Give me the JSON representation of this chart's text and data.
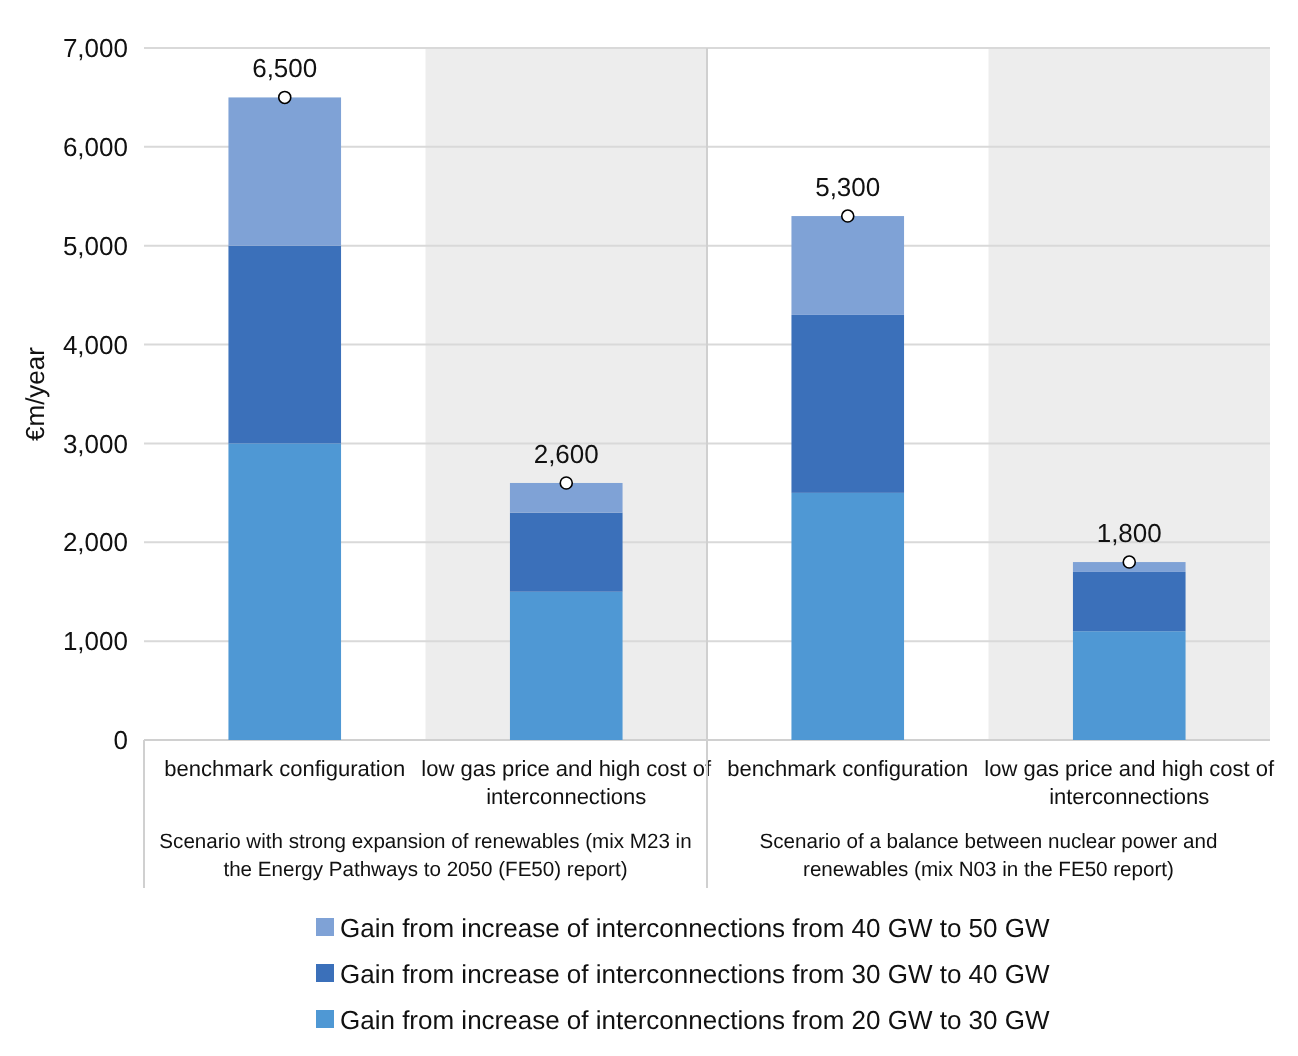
{
  "chart_data": [
    {
      "type": "bar",
      "stacked": true,
      "ylabel": "€m/year",
      "categories": [
        "benchmark configuration",
        "low gas price and high cost of interconnections"
      ],
      "series": [
        {
          "name": "Gain from increase of interconnections from 20 GW to 30 GW",
          "color": "#4f98d4",
          "values": [
            3000,
            1500
          ]
        },
        {
          "name": "Gain from increase of interconnections from 30 GW to 40 GW",
          "color": "#3b70ba",
          "values": [
            2000,
            800
          ]
        },
        {
          "name": "Gain from increase of interconnections from 40 GW to 50 GW",
          "color": "#7fa2d6",
          "values": [
            1500,
            300
          ]
        },
        {
          "type": "scatter",
          "color": "#ffffff",
          "marker": "circle",
          "values": [
            6500,
            2600
          ]
        }
      ],
      "totals": [
        "6,500",
        "2,600"
      ],
      "annotations": [
        "Scenario with strong expansion of renewables (mix M23 in the Energy Pathways to 2050 (FE50) report)"
      ],
      "bands": [
        {
          "axis": "x",
          "from": "low gas price and high cost of interconnections",
          "to": "low gas price and high cost of interconnections",
          "color": "#ededed"
        }
      ],
      "ylim": [
        0,
        7000
      ],
      "yticks": [
        {
          "value": 0,
          "label": "0"
        },
        {
          "value": 1000,
          "label": "1,000"
        },
        {
          "value": 2000,
          "label": "2,000"
        },
        {
          "value": 3000,
          "label": "3,000"
        },
        {
          "value": 4000,
          "label": "4,000"
        },
        {
          "value": 5000,
          "label": "5,000"
        },
        {
          "value": 6000,
          "label": "6,000"
        },
        {
          "value": 7000,
          "label": "7,000"
        }
      ],
      "grid": "y",
      "legend": "bottom"
    },
    {
      "type": "bar",
      "stacked": true,
      "categories": [
        "benchmark configuration",
        "low gas price and high cost of interconnections"
      ],
      "series": [
        {
          "color": "#4f98d4",
          "values": [
            2500,
            1100
          ]
        },
        {
          "color": "#3b70ba",
          "values": [
            1800,
            600
          ]
        },
        {
          "color": "#7fa2d6",
          "values": [
            1000,
            100
          ]
        },
        {
          "type": "scatter",
          "color": "#ffffff",
          "marker": "circle",
          "values": [
            5300,
            1800
          ]
        }
      ],
      "totals": [
        "5,300",
        "1,800"
      ],
      "annotations": [
        "Scenario of a balance between nuclear power and renewables (mix N03 in the FE50 report)"
      ],
      "bands": [
        {
          "axis": "x",
          "from": "low gas price and high cost of interconnections",
          "to": "low gas price and high cost of interconnections",
          "color": "#ededed"
        }
      ],
      "ylim": [
        0,
        7000
      ],
      "yticks": [
        0,
        1000,
        2000,
        3000,
        4000,
        5000,
        6000,
        7000
      ],
      "grid": "y",
      "tick_labels": "x"
    }
  ]
}
